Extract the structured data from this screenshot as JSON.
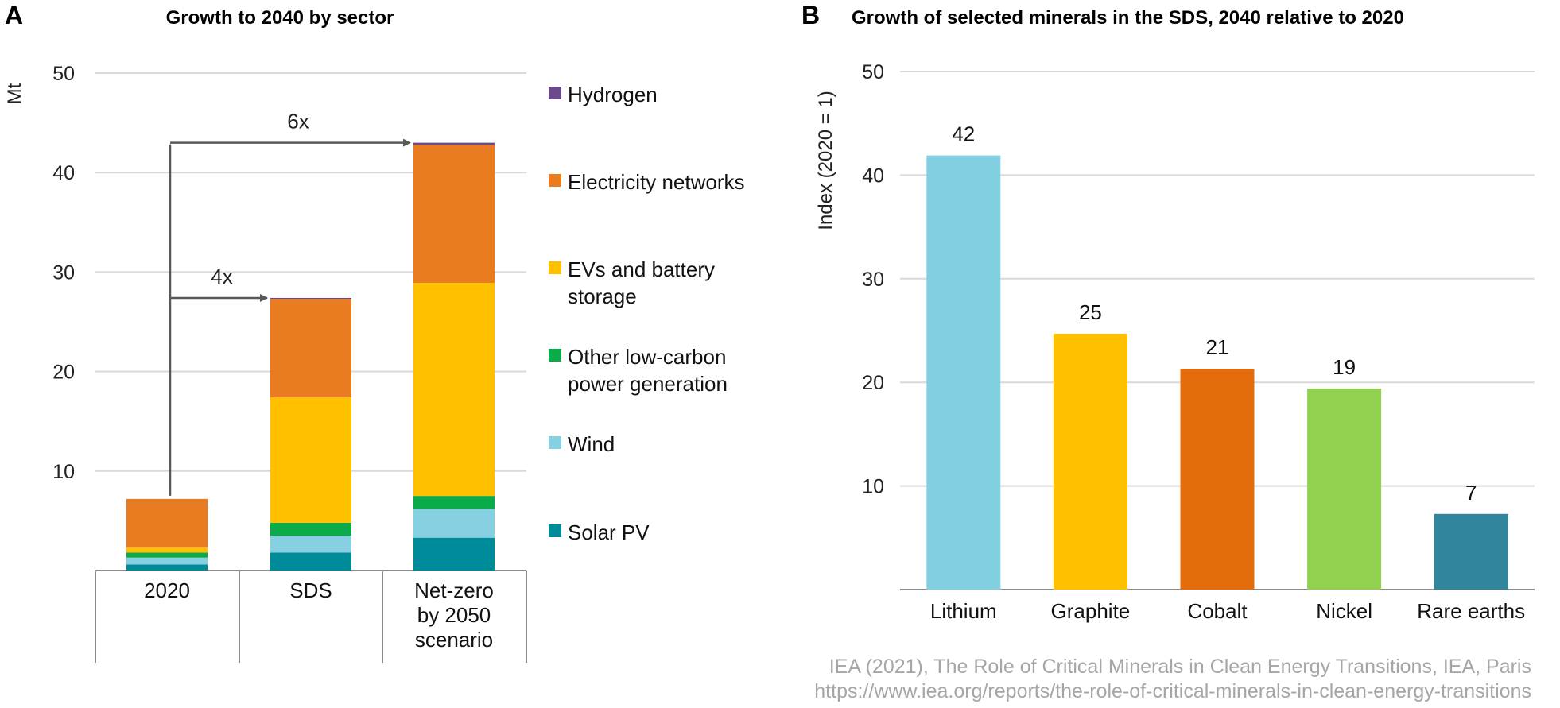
{
  "panel_a": {
    "letter": "A",
    "title": "Growth to 2040 by sector",
    "multipliers": [
      {
        "label": "4x",
        "target": "SDS"
      },
      {
        "label": "6x",
        "target": "Net-zero by 2050 scenario"
      }
    ]
  },
  "panel_b": {
    "letter": "B",
    "title": "Growth of selected minerals in the SDS, 2040 relative to 2020"
  },
  "source": {
    "line1": "IEA (2021), The Role of Critical Minerals in Clean Energy Transitions, IEA, Paris",
    "line2": "https://www.iea.org/reports/the-role-of-critical-minerals-in-clean-energy-transitions"
  },
  "chart_data": [
    {
      "type": "bar",
      "stacked": true,
      "title": "Growth to 2040 by sector",
      "ylabel": "Mt",
      "ylim": [
        0,
        50
      ],
      "yticks": [
        10,
        20,
        30,
        40,
        50
      ],
      "grid": true,
      "legend_position": "right",
      "categories": [
        {
          "lines": [
            "2020"
          ]
        },
        {
          "lines": [
            "SDS"
          ]
        },
        {
          "lines": [
            "Net-zero",
            "by 2050",
            "scenario"
          ]
        }
      ],
      "series": [
        {
          "name": "Solar PV",
          "color": "#008b9b",
          "values": [
            0.6,
            1.8,
            3.3
          ]
        },
        {
          "name": "Wind",
          "color": "#86d0e2",
          "values": [
            0.7,
            1.7,
            2.9
          ]
        },
        {
          "name": "Other low-carbon power generation",
          "legend_lines": [
            "Other low-carbon",
            "power generation"
          ],
          "color": "#0bab4b",
          "values": [
            0.5,
            1.3,
            1.3
          ]
        },
        {
          "name": "EVs and battery storage",
          "legend_lines": [
            "EVs and battery",
            "storage"
          ],
          "color": "#ffc000",
          "values": [
            0.5,
            12.6,
            21.4
          ]
        },
        {
          "name": "Electricity networks",
          "color": "#e97b21",
          "values": [
            4.9,
            9.9,
            13.9
          ]
        },
        {
          "name": "Hydrogen",
          "color": "#6a4a8c",
          "values": [
            0.0,
            0.1,
            0.2
          ]
        }
      ]
    },
    {
      "type": "bar",
      "title": "Growth of selected minerals in the SDS, 2040 relative to 2020",
      "ylabel": "Index (2020 = 1)",
      "ylim": [
        0,
        50
      ],
      "yticks": [
        10,
        20,
        30,
        40,
        50
      ],
      "grid": true,
      "categories": [
        "Lithium",
        "Graphite",
        "Cobalt",
        "Nickel",
        "Rare earths"
      ],
      "values": [
        41.9,
        24.7,
        21.3,
        19.4,
        7.3
      ],
      "data_labels": [
        "42",
        "25",
        "21",
        "19",
        "7"
      ],
      "colors": [
        "#82cfe2",
        "#ffc000",
        "#e46c0a",
        "#92d050",
        "#31859c"
      ]
    }
  ]
}
